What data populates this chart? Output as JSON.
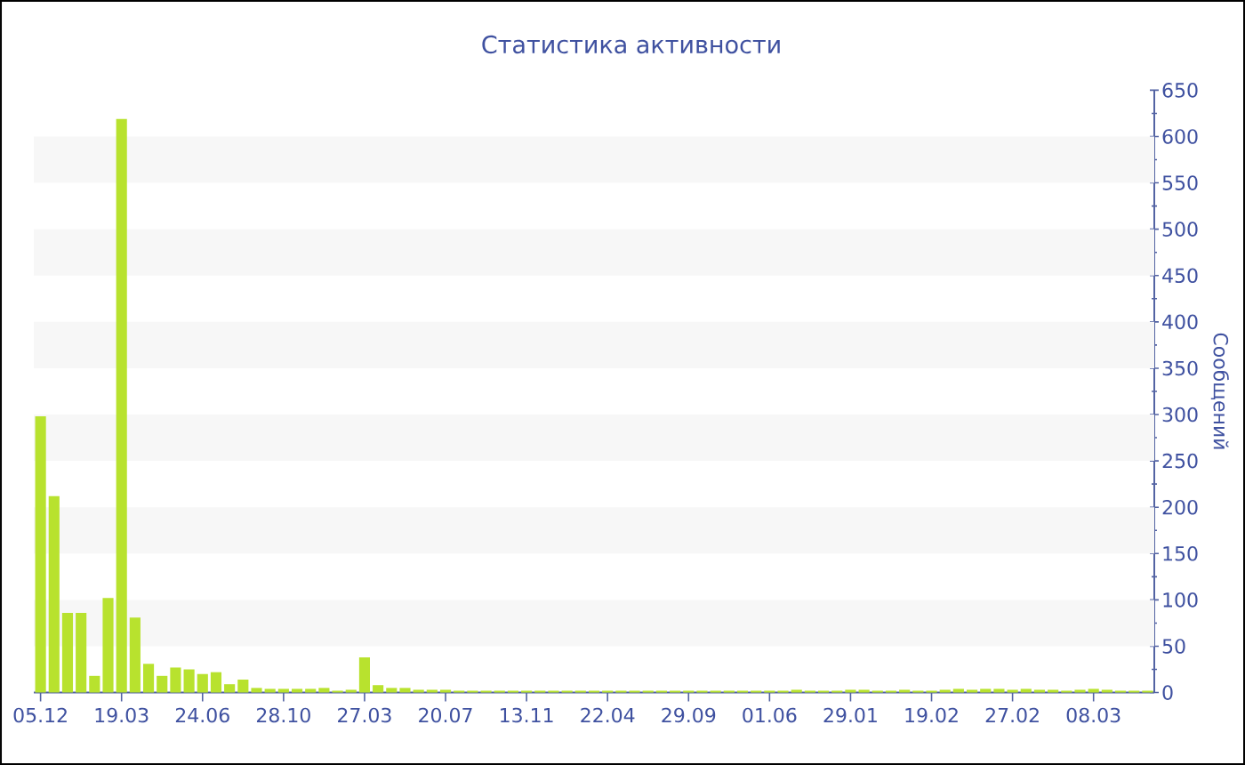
{
  "chart_data": {
    "type": "bar",
    "title": "Статистика активности",
    "ylabel": "Сообщений",
    "categories": [
      "05.12",
      null,
      null,
      null,
      null,
      null,
      "19.03",
      null,
      null,
      null,
      null,
      null,
      "24.06",
      null,
      null,
      null,
      null,
      null,
      "28.10",
      null,
      null,
      null,
      null,
      null,
      "27.03",
      null,
      null,
      null,
      null,
      null,
      "20.07",
      null,
      null,
      null,
      null,
      null,
      "13.11",
      null,
      null,
      null,
      null,
      null,
      "22.04",
      null,
      null,
      null,
      null,
      null,
      "29.09",
      null,
      null,
      null,
      null,
      null,
      "01.06",
      null,
      null,
      null,
      null,
      null,
      "29.01",
      null,
      null,
      null,
      null,
      null,
      "19.02",
      null,
      null,
      null,
      null,
      null,
      "27.02",
      null,
      null,
      null,
      null,
      null,
      "08.03",
      null,
      null,
      null,
      null
    ],
    "values": [
      298,
      212,
      86,
      86,
      18,
      102,
      619,
      81,
      31,
      18,
      27,
      25,
      20,
      22,
      9,
      14,
      5,
      4,
      4,
      4,
      4,
      5,
      2,
      3,
      38,
      8,
      5,
      5,
      3,
      3,
      3,
      2,
      2,
      2,
      2,
      2,
      2,
      2,
      2,
      2,
      2,
      2,
      2,
      2,
      2,
      2,
      2,
      2,
      2,
      2,
      2,
      2,
      2,
      2,
      2,
      2,
      3,
      2,
      2,
      2,
      3,
      3,
      2,
      2,
      3,
      2,
      2,
      3,
      4,
      3,
      4,
      4,
      3,
      4,
      3,
      3,
      2,
      3,
      4,
      3,
      2,
      2,
      2
    ],
    "color": "#b8e22e",
    "ylim": [
      0,
      650
    ],
    "yticks": [
      0,
      50,
      100,
      150,
      200,
      250,
      300,
      350,
      400,
      450,
      500,
      550,
      600,
      650
    ],
    "bands": [
      {
        "axis": "y",
        "from": 50,
        "to": 100,
        "color": "#f7f7f7"
      },
      {
        "axis": "y",
        "from": 150,
        "to": 200,
        "color": "#f7f7f7"
      },
      {
        "axis": "y",
        "from": 250,
        "to": 300,
        "color": "#f7f7f7"
      },
      {
        "axis": "y",
        "from": 350,
        "to": 400,
        "color": "#f7f7f7"
      },
      {
        "axis": "y",
        "from": 450,
        "to": 500,
        "color": "#f7f7f7"
      },
      {
        "axis": "y",
        "from": 550,
        "to": 600,
        "color": "#f7f7f7"
      }
    ]
  }
}
